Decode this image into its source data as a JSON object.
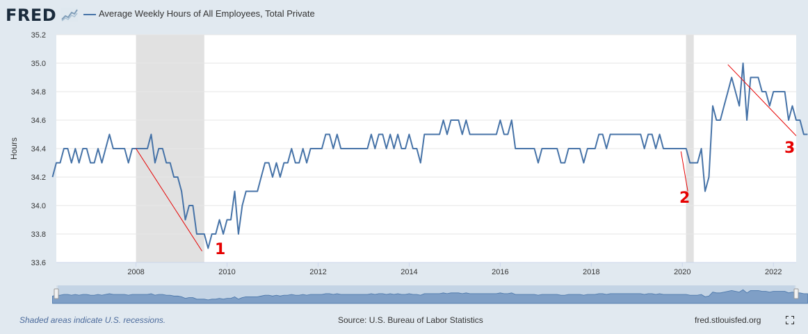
{
  "header": {
    "logo": "FRED",
    "series_name": "Average Weekly Hours of All Employees, Total Private"
  },
  "footer": {
    "note": "Shaded areas indicate U.S. recessions.",
    "source": "Source: U.S. Bureau of Labor Statistics",
    "site": "fred.stlouisfed.org"
  },
  "annotations": [
    "1",
    "2",
    "3"
  ],
  "colors": {
    "line": "#4572a7",
    "recession": "#e1e1e1",
    "annotation": "#e60000",
    "plot_bg": "#ffffff",
    "page_bg": "#e1e9f0"
  },
  "chart_data": {
    "type": "line",
    "title": "Average Weekly Hours of All Employees, Total Private",
    "ylabel": "Hours",
    "xlabel": "",
    "ylim": [
      33.6,
      35.2
    ],
    "xlim": [
      2006.25,
      2022.5
    ],
    "x_ticks": [
      "2008",
      "2010",
      "2012",
      "2014",
      "2016",
      "2018",
      "2020",
      "2022"
    ],
    "y_ticks": [
      "33.6",
      "33.8",
      "34.0",
      "34.2",
      "34.4",
      "34.6",
      "34.8",
      "35.0",
      "35.2"
    ],
    "grid": true,
    "recessions": [
      [
        2008.0,
        2009.5
      ],
      [
        2020.08,
        2020.25
      ]
    ],
    "trend_lines": [
      {
        "label": "1",
        "from": [
          2008.0,
          34.4
        ],
        "to": [
          2009.45,
          33.68
        ]
      },
      {
        "label": "2",
        "from": [
          2019.97,
          34.38
        ],
        "to": [
          2020.12,
          34.1
        ]
      },
      {
        "label": "3",
        "from": [
          2021.0,
          34.99
        ],
        "to": [
          2022.5,
          34.49
        ]
      }
    ],
    "series": [
      {
        "x_start": "2006-03",
        "frequency": "monthly",
        "values": [
          34.2,
          34.3,
          34.3,
          34.4,
          34.4,
          34.3,
          34.4,
          34.3,
          34.4,
          34.4,
          34.3,
          34.3,
          34.4,
          34.3,
          34.4,
          34.5,
          34.4,
          34.4,
          34.4,
          34.4,
          34.3,
          34.4,
          34.4,
          34.4,
          34.4,
          34.4,
          34.5,
          34.3,
          34.4,
          34.4,
          34.3,
          34.3,
          34.2,
          34.2,
          34.1,
          33.9,
          34.0,
          34.0,
          33.8,
          33.8,
          33.8,
          33.7,
          33.8,
          33.8,
          33.9,
          33.8,
          33.9,
          33.9,
          34.1,
          33.8,
          34.0,
          34.1,
          34.1,
          34.1,
          34.1,
          34.2,
          34.3,
          34.3,
          34.2,
          34.3,
          34.2,
          34.3,
          34.3,
          34.4,
          34.3,
          34.3,
          34.4,
          34.3,
          34.4,
          34.4,
          34.4,
          34.4,
          34.5,
          34.5,
          34.4,
          34.5,
          34.4,
          34.4,
          34.4,
          34.4,
          34.4,
          34.4,
          34.4,
          34.4,
          34.5,
          34.4,
          34.5,
          34.5,
          34.4,
          34.5,
          34.4,
          34.5,
          34.4,
          34.4,
          34.5,
          34.4,
          34.4,
          34.3,
          34.5,
          34.5,
          34.5,
          34.5,
          34.5,
          34.6,
          34.5,
          34.6,
          34.6,
          34.6,
          34.5,
          34.6,
          34.5,
          34.5,
          34.5,
          34.5,
          34.5,
          34.5,
          34.5,
          34.5,
          34.6,
          34.5,
          34.5,
          34.6,
          34.4,
          34.4,
          34.4,
          34.4,
          34.4,
          34.4,
          34.3,
          34.4,
          34.4,
          34.4,
          34.4,
          34.4,
          34.3,
          34.3,
          34.4,
          34.4,
          34.4,
          34.4,
          34.3,
          34.4,
          34.4,
          34.4,
          34.5,
          34.5,
          34.4,
          34.5,
          34.5,
          34.5,
          34.5,
          34.5,
          34.5,
          34.5,
          34.5,
          34.5,
          34.4,
          34.5,
          34.5,
          34.4,
          34.5,
          34.4,
          34.4,
          34.4,
          34.4,
          34.4,
          34.4,
          34.4,
          34.3,
          34.3,
          34.3,
          34.4,
          34.1,
          34.2,
          34.7,
          34.6,
          34.6,
          34.7,
          34.8,
          34.9,
          34.8,
          34.7,
          35.0,
          34.6,
          34.9,
          34.9,
          34.9,
          34.8,
          34.8,
          34.7,
          34.8,
          34.8,
          34.8,
          34.8,
          34.6,
          34.7,
          34.6,
          34.6,
          34.5,
          34.5
        ]
      }
    ]
  }
}
